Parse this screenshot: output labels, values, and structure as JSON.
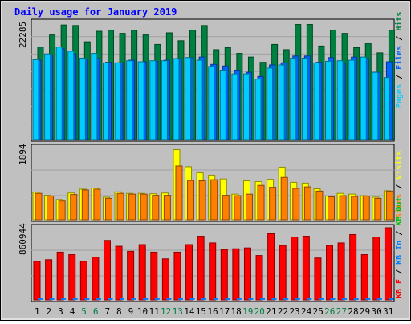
{
  "chart_data": [
    {
      "type": "bar",
      "title": "Daily usage for January 2019",
      "ylabel_max": "22285",
      "legend": [
        {
          "label": "Pages",
          "color": "#00ccff"
        },
        {
          "label": "Files",
          "color": "#0066ff"
        },
        {
          "label": "Hits",
          "color": "#008040"
        }
      ],
      "legend_separator": " / ",
      "categories": [
        "1",
        "2",
        "3",
        "4",
        "5",
        "6",
        "7",
        "8",
        "9",
        "10",
        "11",
        "12",
        "13",
        "14",
        "15",
        "16",
        "17",
        "18",
        "19",
        "20",
        "21",
        "22",
        "23",
        "24",
        "25",
        "26",
        "27",
        "28",
        "29",
        "30",
        "31"
      ],
      "weekend_days": [
        "5",
        "6",
        "12",
        "13",
        "19",
        "20",
        "26",
        "27"
      ],
      "ylim": [
        0,
        22285
      ],
      "series": [
        {
          "name": "Hits",
          "color": "#008040",
          "values": [
            17600,
            19900,
            21800,
            21700,
            18600,
            20600,
            20800,
            20200,
            20800,
            19900,
            18100,
            20300,
            18800,
            20800,
            21700,
            17100,
            17500,
            16400,
            15700,
            14700,
            18100,
            17100,
            21900,
            21900,
            17800,
            20800,
            20200,
            17500,
            18300,
            16500,
            20800
          ]
        },
        {
          "name": "Files",
          "color": "#0066ff",
          "values": [
            15100,
            16100,
            17300,
            16300,
            15300,
            15400,
            14700,
            14600,
            15100,
            14800,
            14900,
            15100,
            15400,
            15600,
            15700,
            14300,
            14000,
            13200,
            12800,
            12000,
            14200,
            14600,
            15900,
            15900,
            14700,
            15600,
            14600,
            15700,
            15400,
            12800,
            14800
          ]
        },
        {
          "name": "Pages",
          "color": "#00ccff",
          "values": [
            15200,
            16300,
            17600,
            16800,
            15500,
            16400,
            14600,
            14600,
            15000,
            14800,
            15000,
            15000,
            15400,
            15600,
            15100,
            13900,
            13200,
            12500,
            12500,
            11500,
            13600,
            14200,
            15500,
            15500,
            14600,
            14900,
            15000,
            15100,
            15700,
            12800,
            11800
          ]
        }
      ]
    },
    {
      "type": "bar",
      "ylabel_max": "1894",
      "legend": [
        {
          "label": "Sites",
          "color": "#ff8000"
        },
        {
          "label": "Visits",
          "color": "#ffff00"
        }
      ],
      "legend_separator": " / ",
      "categories": [
        "1",
        "2",
        "3",
        "4",
        "5",
        "6",
        "7",
        "8",
        "9",
        "10",
        "11",
        "12",
        "13",
        "14",
        "15",
        "16",
        "17",
        "18",
        "19",
        "20",
        "21",
        "22",
        "23",
        "24",
        "25",
        "26",
        "27",
        "28",
        "29",
        "30",
        "31"
      ],
      "ylim": [
        0,
        1894
      ],
      "series": [
        {
          "name": "Visits",
          "color": "#ffff00",
          "values": [
            720,
            640,
            530,
            700,
            800,
            830,
            590,
            730,
            690,
            690,
            680,
            700,
            1840,
            1390,
            1230,
            1170,
            1070,
            670,
            1020,
            1000,
            1060,
            1380,
            980,
            960,
            810,
            620,
            690,
            670,
            630,
            590,
            760
          ]
        },
        {
          "name": "Sites",
          "color": "#ff8000",
          "values": [
            690,
            620,
            490,
            660,
            780,
            800,
            560,
            690,
            670,
            670,
            640,
            640,
            1410,
            1030,
            1020,
            1050,
            640,
            630,
            670,
            900,
            850,
            1110,
            820,
            860,
            750,
            600,
            630,
            610,
            620,
            560,
            750
          ]
        }
      ]
    },
    {
      "type": "bar",
      "ylabel_max": "860944",
      "legend": [
        {
          "label": "KB F",
          "color": "#ff0000"
        },
        {
          "label": "KB In",
          "color": "#0080ff"
        },
        {
          "label": "KB Out",
          "color": "#00c000"
        }
      ],
      "legend_separator": " / ",
      "categories": [
        "1",
        "2",
        "3",
        "4",
        "5",
        "6",
        "7",
        "8",
        "9",
        "10",
        "11",
        "12",
        "13",
        "14",
        "15",
        "16",
        "17",
        "18",
        "19",
        "20",
        "21",
        "22",
        "23",
        "24",
        "25",
        "26",
        "27",
        "28",
        "29",
        "30",
        "31"
      ],
      "ylim": [
        0,
        860944
      ],
      "series": [
        {
          "name": "KB F",
          "color": "#ff0000",
          "values": [
            460000,
            480000,
            570000,
            540000,
            460000,
            510000,
            710000,
            640000,
            580000,
            660000,
            570000,
            490000,
            570000,
            660000,
            760000,
            680000,
            600000,
            610000,
            620000,
            530000,
            790000,
            650000,
            750000,
            760000,
            500000,
            650000,
            680000,
            780000,
            540000,
            750000,
            860944
          ]
        }
      ]
    }
  ]
}
